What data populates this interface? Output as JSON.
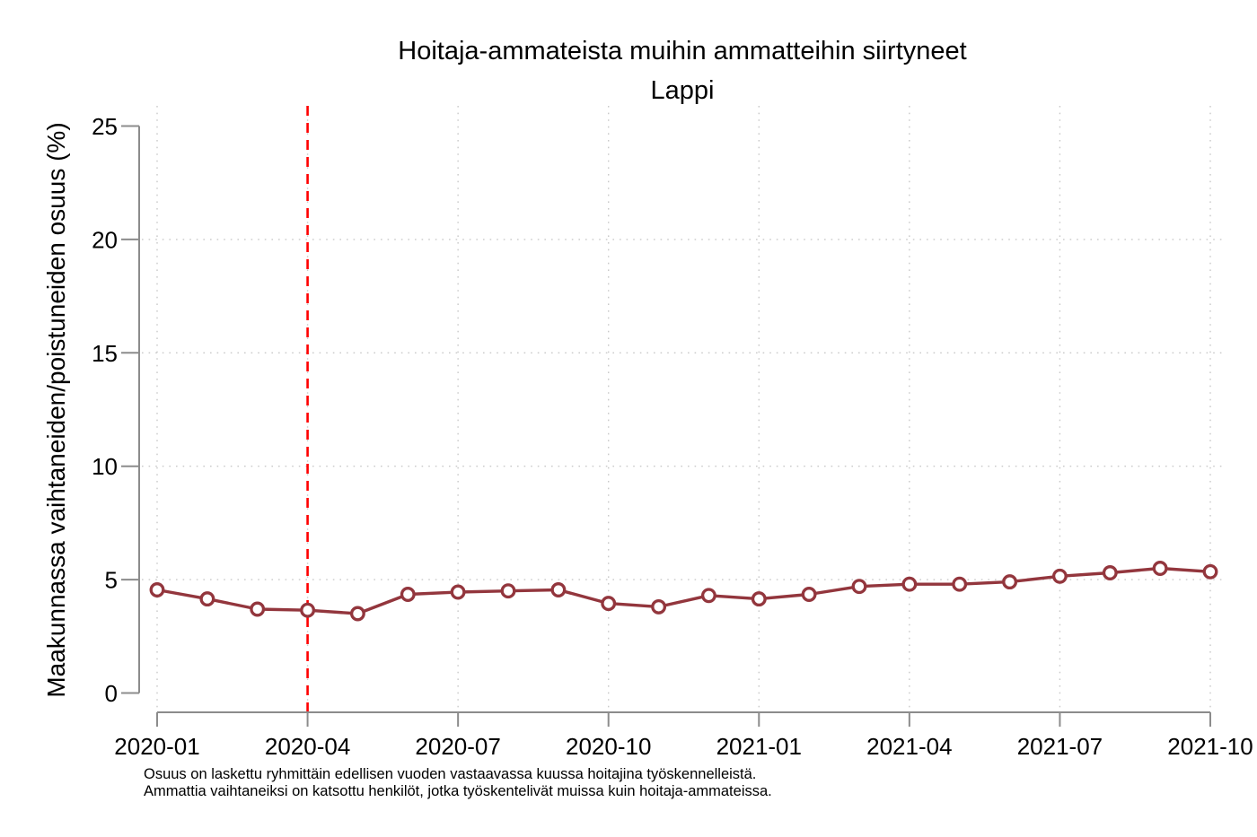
{
  "chart_data": {
    "type": "line",
    "title": "Hoitaja-ammateista muihin ammatteihin siirtyneet",
    "subtitle": "Lappi",
    "ylabel": "Maakunnassa vaihtaneiden/poistuneiden osuus (%)",
    "xlabel": "",
    "x": [
      "2020-01",
      "2020-02",
      "2020-03",
      "2020-04",
      "2020-05",
      "2020-06",
      "2020-07",
      "2020-08",
      "2020-09",
      "2020-10",
      "2020-11",
      "2020-12",
      "2021-01",
      "2021-02",
      "2021-03",
      "2021-04",
      "2021-05",
      "2021-06",
      "2021-07",
      "2021-08",
      "2021-09",
      "2021-10"
    ],
    "series": [
      {
        "name": "Lappi",
        "color": "#93363D",
        "marker": "open-circle",
        "values": [
          4.55,
          4.15,
          3.7,
          3.65,
          3.5,
          4.35,
          4.45,
          4.5,
          4.55,
          3.95,
          3.8,
          4.3,
          4.15,
          4.35,
          4.7,
          4.8,
          4.8,
          4.9,
          5.15,
          5.3,
          5.5,
          5.35
        ]
      }
    ],
    "ylim": [
      0,
      25
    ],
    "yticks": [
      0,
      5,
      10,
      15,
      20,
      25
    ],
    "ygrid_values": [
      5,
      10,
      15,
      20
    ],
    "xtick_labels": [
      "2020-01",
      "2020-04",
      "2020-07",
      "2020-10",
      "2021-01",
      "2021-04",
      "2021-07",
      "2021-10"
    ],
    "grid": "dotted",
    "legend": "none",
    "reference_line": {
      "x": "2020-04",
      "color": "#FF0000",
      "style": "dashed"
    },
    "footnotes": [
      "Osuus on laskettu ryhmittäin edellisen vuoden vastaavassa kuussa hoitajina työskennelleistä.",
      "Ammattia vaihtaneiksi on katsottu henkilöt, jotka työskentelivät muissa kuin hoitaja-ammateissa."
    ]
  },
  "colors": {
    "background": "#FFFFFF",
    "axis": "#8C8C8C",
    "grid": "#C9C9C9",
    "text": "#000000",
    "line": "#93363D",
    "marker_fill": "#FFFFFF",
    "reference": "#FF0000"
  }
}
